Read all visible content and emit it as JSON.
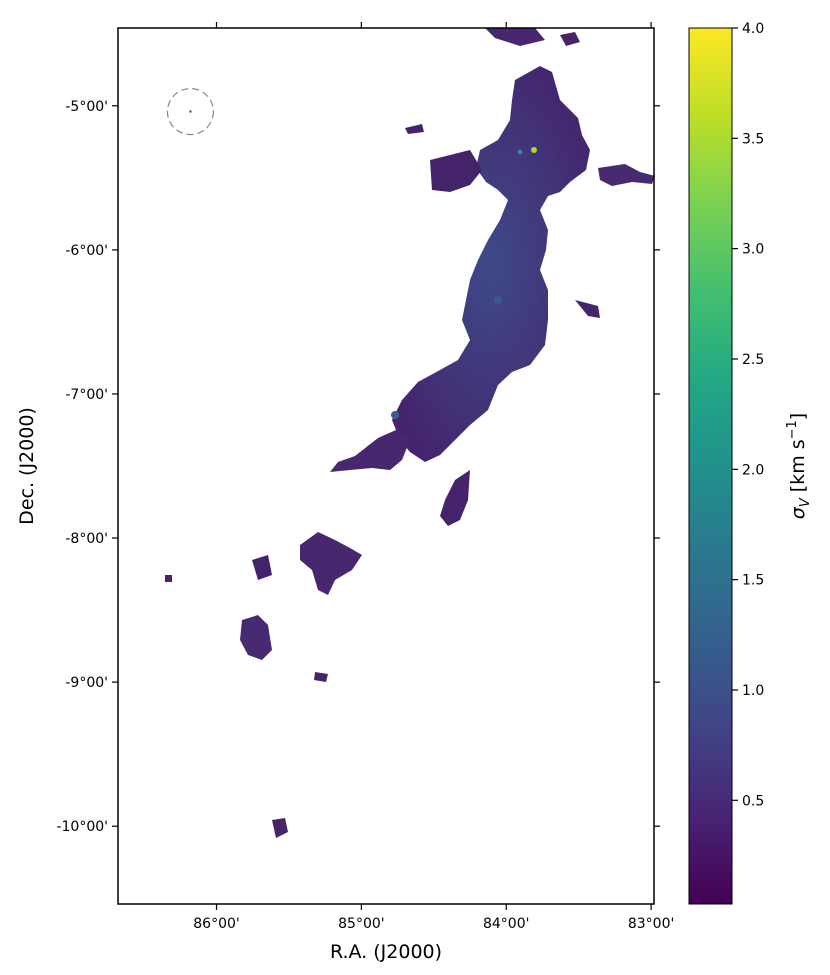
{
  "chart_data": {
    "type": "heatmap",
    "title": "",
    "xlabel": "R.A. (J2000)",
    "ylabel": "Dec. (J2000)",
    "x_ticks": [
      {
        "value": 86.0,
        "label": "86°00'"
      },
      {
        "value": 85.0,
        "label": "85°00'"
      },
      {
        "value": 84.0,
        "label": "84°00'"
      },
      {
        "value": 83.0,
        "label": "83°00'"
      }
    ],
    "y_ticks": [
      {
        "value": -5.0,
        "label": "-5°00'"
      },
      {
        "value": -6.0,
        "label": "-6°00'"
      },
      {
        "value": -7.0,
        "label": "-7°00'"
      },
      {
        "value": -8.0,
        "label": "-8°00'"
      },
      {
        "value": -9.0,
        "label": "-9°00'"
      },
      {
        "value": -10.0,
        "label": "-10°00'"
      }
    ],
    "xlim": [
      86.68,
      82.98
    ],
    "ylim": [
      -10.54,
      -4.46
    ],
    "colorbar": {
      "label_main": "σ",
      "label_sub": "V",
      "label_units": " [km s",
      "label_exp": "−1",
      "label_close": "]",
      "range": [
        0.03,
        4.0
      ],
      "colormap": "viridis",
      "ticks": [
        {
          "value": 0.5,
          "label": "0.5"
        },
        {
          "value": 1.0,
          "label": "1.0"
        },
        {
          "value": 1.5,
          "label": "1.5"
        },
        {
          "value": 2.0,
          "label": "2.0"
        },
        {
          "value": 2.5,
          "label": "2.5"
        },
        {
          "value": 3.0,
          "label": "3.0"
        },
        {
          "value": 3.5,
          "label": "3.5"
        },
        {
          "value": 4.0,
          "label": "4.0"
        }
      ]
    },
    "beam": {
      "ra": 86.18,
      "dec": -5.04,
      "style": "dashed",
      "color": "#888888"
    },
    "colors": {
      "background": "#ffffff",
      "low": "#440154",
      "mid": "#3b528b",
      "high": "#b5de2b"
    }
  }
}
